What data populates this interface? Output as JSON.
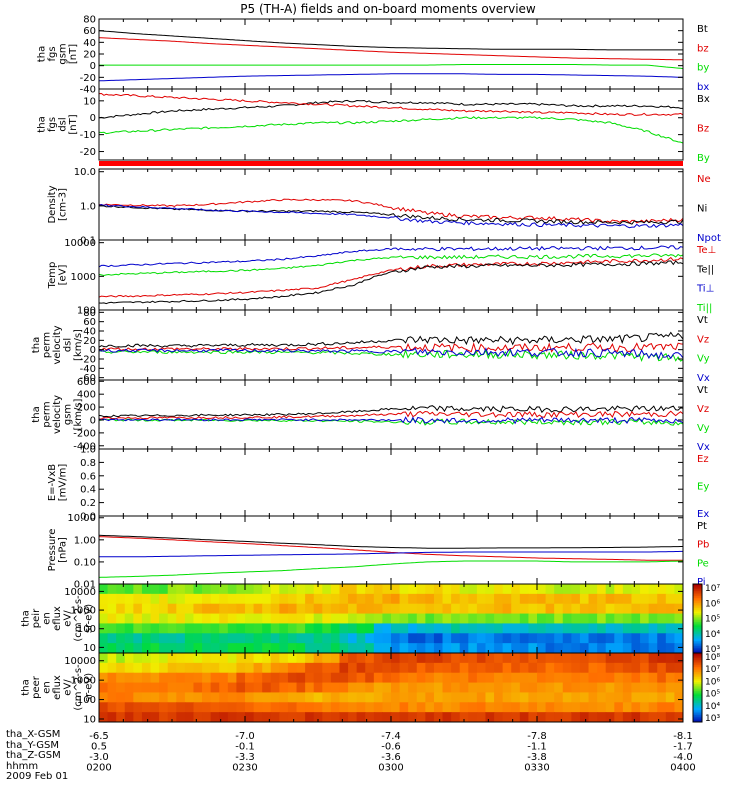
{
  "title": "P5 (TH-A) fields and on-board moments overview",
  "x_axis": {
    "tick_rows": [
      {
        "label": "tha_X-GSM",
        "values": [
          "-6.5",
          "-7.0",
          "-7.4",
          "-7.8",
          "-8.1"
        ]
      },
      {
        "label": "tha_Y-GSM",
        "values": [
          "0.5",
          "-0.1",
          "-0.6",
          "-1.1",
          "-1.7"
        ]
      },
      {
        "label": "tha_Z-GSM",
        "values": [
          "-3.0",
          "-3.3",
          "-3.6",
          "-3.8",
          "-4.0"
        ]
      },
      {
        "label": "hhmm",
        "values": [
          "0200",
          "0230",
          "0300",
          "0330",
          "0400"
        ]
      }
    ],
    "date": "2009 Feb 01"
  },
  "colors": {
    "black": "#000000",
    "red": "#e00000",
    "green": "#00dd00",
    "blue": "#0000cc"
  },
  "chart_data": [
    {
      "id": "fgs-gsm",
      "type": "line",
      "ylabel": [
        "tha",
        "fgs",
        "gsm",
        "[nT]"
      ],
      "yticks": [
        "80",
        "60",
        "40",
        "20",
        "0",
        "-20",
        "-40"
      ],
      "ylim": [
        -40,
        80
      ],
      "series": [
        {
          "name": "Bt",
          "color": "black",
          "values": [
            60,
            55,
            51,
            47,
            43,
            39,
            36,
            33,
            31,
            30,
            29,
            28,
            28,
            28,
            27,
            27,
            27
          ]
        },
        {
          "name": "bz",
          "color": "red",
          "values": [
            48,
            45,
            42,
            38,
            35,
            32,
            29,
            26,
            23,
            21,
            19,
            17,
            15,
            13,
            12,
            11,
            10
          ]
        },
        {
          "name": "by",
          "color": "green",
          "values": [
            1,
            1,
            1,
            1,
            1,
            1,
            1,
            1,
            1,
            1,
            2,
            2,
            2,
            2,
            1,
            1,
            -5
          ]
        },
        {
          "name": "bx",
          "color": "blue",
          "values": [
            -26,
            -24,
            -22,
            -20,
            -18,
            -17,
            -16,
            -15,
            -14,
            -14,
            -14,
            -15,
            -15,
            -16,
            -17,
            -18,
            -20
          ]
        }
      ]
    },
    {
      "id": "fgs-dsl",
      "type": "line",
      "ylabel": [
        "tha",
        "fgs",
        "dsl",
        "[nT]"
      ],
      "yticks": [
        "10",
        "0",
        "-10",
        "-20"
      ],
      "ylim": [
        -25,
        17
      ],
      "series": [
        {
          "name": "Bx",
          "color": "black",
          "values": [
            0,
            2,
            4,
            5,
            6,
            7,
            9,
            10,
            9,
            9,
            8,
            8,
            8,
            7,
            7,
            7,
            6
          ]
        },
        {
          "name": "Bz",
          "color": "red",
          "values": [
            14,
            13,
            12,
            11,
            10,
            9,
            8,
            7,
            6,
            5,
            4,
            4,
            3,
            3,
            2,
            2,
            2
          ]
        },
        {
          "name": "By",
          "color": "green",
          "values": [
            -9,
            -8,
            -7,
            -6,
            -5,
            -4,
            -3,
            -3,
            -2,
            -1,
            0,
            0,
            0,
            -1,
            -3,
            -8,
            -15
          ]
        }
      ]
    },
    {
      "id": "density",
      "type": "line",
      "scale": "log",
      "ylabel": [
        "Density",
        "[cm-3]"
      ],
      "yticks": [
        "10.0",
        "1.0",
        "0.1"
      ],
      "ylim": [
        0.1,
        12
      ],
      "series": [
        {
          "name": "Ne",
          "color": "red",
          "values": [
            1.1,
            1.05,
            1.0,
            1.1,
            1.3,
            1.5,
            1.5,
            1.4,
            0.9,
            0.6,
            0.5,
            0.45,
            0.45,
            0.4,
            0.35,
            0.35,
            0.4
          ]
        },
        {
          "name": "Ni",
          "color": "black",
          "values": [
            1.0,
            0.9,
            0.8,
            0.75,
            0.7,
            0.7,
            0.7,
            0.65,
            0.55,
            0.45,
            0.4,
            0.38,
            0.36,
            0.34,
            0.33,
            0.33,
            0.35
          ]
        },
        {
          "name": "Npot",
          "color": "blue",
          "values": [
            1.05,
            0.95,
            0.85,
            0.75,
            0.7,
            0.65,
            0.6,
            0.55,
            0.45,
            0.35,
            0.32,
            0.3,
            0.28,
            0.27,
            0.26,
            0.26,
            0.28
          ]
        }
      ]
    },
    {
      "id": "temperature",
      "type": "line",
      "scale": "log",
      "ylabel": [
        "Temp",
        "[eV]"
      ],
      "yticks": [
        "10000",
        "1000",
        "100"
      ],
      "ylim": [
        100,
        12000
      ],
      "series": [
        {
          "name": "Te⊥",
          "color": "red",
          "values": [
            250,
            260,
            280,
            300,
            330,
            380,
            450,
            800,
            1500,
            2000,
            2200,
            2300,
            2400,
            2600,
            2800,
            3000,
            3300
          ]
        },
        {
          "name": "Te||",
          "color": "black",
          "values": [
            160,
            170,
            180,
            190,
            210,
            250,
            330,
            550,
            1300,
            1900,
            2000,
            2100,
            2100,
            2200,
            2300,
            2400,
            2600
          ]
        },
        {
          "name": "Ti⊥",
          "color": "blue",
          "values": [
            2000,
            2200,
            2400,
            2600,
            2800,
            3200,
            4000,
            5500,
            6500,
            6500,
            6500,
            6600,
            6700,
            6800,
            6900,
            7000,
            7200
          ]
        },
        {
          "name": "Ti||",
          "color": "green",
          "values": [
            1100,
            1200,
            1300,
            1400,
            1500,
            1700,
            2100,
            3000,
            3600,
            3700,
            3700,
            3800,
            3800,
            3900,
            4000,
            4100,
            4200
          ]
        }
      ]
    },
    {
      "id": "perm-velocity-dsl",
      "type": "line",
      "ylabel": [
        "tha",
        "perm",
        "velocity",
        "dsl",
        "[km/s]"
      ],
      "yticks": [
        "80",
        "60",
        "40",
        "20",
        "0",
        "-20",
        "-40",
        "-60"
      ],
      "ylim": [
        -65,
        85
      ],
      "series": [
        {
          "name": "Vt",
          "color": "black",
          "values": [
            8,
            9,
            8,
            9,
            10,
            10,
            12,
            15,
            20,
            22,
            20,
            20,
            20,
            22,
            22,
            25,
            30
          ]
        },
        {
          "name": "Vz",
          "color": "red",
          "values": [
            2,
            1,
            2,
            1,
            2,
            2,
            3,
            4,
            6,
            5,
            4,
            4,
            4,
            5,
            5,
            5,
            6
          ]
        },
        {
          "name": "Vy",
          "color": "green",
          "values": [
            -5,
            -5,
            -5,
            -5,
            -5,
            -6,
            -6,
            -8,
            -10,
            -10,
            -10,
            -10,
            -11,
            -12,
            -12,
            -15,
            -20
          ]
        },
        {
          "name": "Vx",
          "color": "blue",
          "values": [
            -2,
            -2,
            -2,
            -2,
            -2,
            -2,
            -3,
            -3,
            -4,
            -5,
            -5,
            -5,
            -6,
            -6,
            -7,
            -10,
            -15
          ]
        }
      ]
    },
    {
      "id": "perm-velocity-gsm",
      "type": "line",
      "ylabel": [
        "tha",
        "perm",
        "velocity",
        "gsm",
        "[km/s]"
      ],
      "yticks": [
        "600",
        "400",
        "200",
        "0",
        "-200",
        "-400"
      ],
      "ylim": [
        -450,
        620
      ],
      "series": [
        {
          "name": "Vt",
          "color": "black",
          "values": [
            60,
            65,
            70,
            75,
            80,
            85,
            100,
            130,
            170,
            180,
            170,
            170,
            165,
            170,
            170,
            175,
            180
          ]
        },
        {
          "name": "Vz",
          "color": "red",
          "values": [
            30,
            32,
            35,
            38,
            40,
            45,
            55,
            70,
            90,
            95,
            90,
            88,
            85,
            88,
            88,
            90,
            95
          ]
        },
        {
          "name": "Vy",
          "color": "green",
          "values": [
            0,
            -2,
            -4,
            -5,
            -6,
            -8,
            -12,
            -20,
            -30,
            -35,
            -30,
            -30,
            -30,
            -30,
            -30,
            -35,
            -45
          ]
        },
        {
          "name": "Vx",
          "color": "blue",
          "values": [
            5,
            5,
            5,
            4,
            4,
            4,
            3,
            2,
            0,
            -5,
            -5,
            -5,
            -5,
            -5,
            -5,
            -5,
            -8
          ]
        }
      ]
    },
    {
      "id": "e-field",
      "type": "line",
      "ylabel": [
        "E=-VxB",
        "[mV/m]"
      ],
      "yticks": [
        "1.0",
        "0.8",
        "0.6",
        "0.4",
        "0.2",
        "0.0"
      ],
      "ylim": [
        0,
        1
      ],
      "series": [
        {
          "name": "Ez",
          "color": "red",
          "values": []
        },
        {
          "name": "Ey",
          "color": "green",
          "values": []
        },
        {
          "name": "Ex",
          "color": "blue",
          "values": []
        }
      ]
    },
    {
      "id": "pressure",
      "type": "line",
      "scale": "log",
      "ylabel": [
        "Pressure",
        "[nPa]"
      ],
      "yticks": [
        "10.00",
        "1.00",
        "0.10",
        "0.01"
      ],
      "ylim": [
        0.01,
        12
      ],
      "series": [
        {
          "name": "Pt",
          "color": "black",
          "values": [
            1.6,
            1.4,
            1.2,
            1.0,
            0.85,
            0.7,
            0.6,
            0.5,
            0.45,
            0.42,
            0.42,
            0.43,
            0.43,
            0.44,
            0.45,
            0.47,
            0.5
          ]
        },
        {
          "name": "Pb",
          "color": "red",
          "values": [
            1.4,
            1.2,
            1.0,
            0.82,
            0.68,
            0.55,
            0.44,
            0.35,
            0.27,
            0.22,
            0.19,
            0.17,
            0.15,
            0.14,
            0.13,
            0.12,
            0.12
          ]
        },
        {
          "name": "Pe",
          "color": "green",
          "values": [
            0.02,
            0.022,
            0.025,
            0.03,
            0.035,
            0.04,
            0.05,
            0.06,
            0.08,
            0.1,
            0.11,
            0.11,
            0.11,
            0.1,
            0.1,
            0.1,
            0.11
          ]
        },
        {
          "name": "Pi",
          "color": "blue",
          "values": [
            0.17,
            0.17,
            0.18,
            0.19,
            0.2,
            0.21,
            0.22,
            0.23,
            0.25,
            0.27,
            0.28,
            0.28,
            0.28,
            0.28,
            0.28,
            0.28,
            0.3
          ]
        }
      ]
    },
    {
      "id": "peir-spectrogram",
      "type": "heatmap",
      "ylabel": [
        "tha",
        "peir",
        "en",
        "eflux",
        "eV/",
        "(cm^2-s-",
        "sr-eV)"
      ],
      "yticks": [
        "10000",
        "1000",
        "100",
        "10"
      ],
      "ylim": [
        5,
        25000
      ],
      "colorbar": {
        "min_exp": 3,
        "max_exp": 7,
        "ticks": [
          "10⁷",
          "10⁶",
          "10⁵",
          "10⁴",
          "10³"
        ]
      },
      "rows_log10_flux": [
        [
          4.8,
          4.9,
          5.0,
          5.1,
          5.2,
          5.3,
          5.4,
          5.6,
          5.5,
          5.5,
          5.4,
          5.4,
          5.4,
          5.3,
          5.3,
          5.3,
          5.3
        ],
        [
          5.3,
          5.4,
          5.4,
          5.5,
          5.5,
          5.6,
          5.7,
          5.8,
          5.8,
          5.8,
          5.7,
          5.7,
          5.7,
          5.7,
          5.7,
          5.7,
          5.7
        ],
        [
          5.5,
          5.6,
          5.6,
          5.7,
          5.7,
          5.8,
          5.8,
          5.8,
          5.7,
          5.7,
          5.7,
          5.7,
          5.7,
          5.7,
          5.7,
          5.7,
          5.7
        ],
        [
          5.4,
          5.4,
          5.4,
          5.4,
          5.4,
          5.4,
          5.3,
          5.2,
          5.0,
          5.0,
          5.0,
          5.0,
          5.0,
          5.0,
          5.0,
          5.0,
          5.0
        ],
        [
          4.8,
          4.8,
          4.8,
          4.8,
          4.8,
          4.8,
          4.7,
          4.5,
          4.0,
          4.0,
          4.1,
          4.1,
          4.1,
          4.1,
          4.1,
          4.1,
          4.1
        ],
        [
          4.3,
          4.3,
          4.3,
          4.3,
          4.3,
          4.3,
          4.2,
          4.0,
          3.6,
          3.5,
          3.6,
          3.6,
          3.6,
          3.6,
          3.6,
          3.6,
          3.6
        ],
        [
          4.5,
          4.5,
          4.5,
          4.5,
          4.5,
          4.5,
          4.4,
          4.2,
          3.8,
          3.7,
          3.7,
          3.7,
          3.7,
          3.6,
          3.6,
          3.6,
          3.6
        ]
      ]
    },
    {
      "id": "peer-spectrogram",
      "type": "heatmap",
      "ylabel": [
        "tha",
        "peer",
        "en",
        "eflux",
        "eV/",
        "(cm^2-s-",
        "sr-eV)"
      ],
      "yticks": [
        "10000",
        "1000",
        "100",
        "10"
      ],
      "ylim": [
        7,
        25000
      ],
      "colorbar": {
        "min_exp": 3,
        "max_exp": 8,
        "ticks": [
          "10⁸",
          "10⁷",
          "10⁶",
          "10⁵",
          "10⁴",
          "10³"
        ]
      },
      "rows_log10_flux": [
        [
          5.8,
          5.9,
          6.0,
          6.0,
          6.1,
          6.2,
          6.5,
          7.2,
          7.5,
          7.4,
          7.3,
          7.3,
          7.3,
          7.3,
          7.3,
          7.4,
          7.5
        ],
        [
          6.2,
          6.2,
          6.3,
          6.3,
          6.5,
          6.8,
          7.2,
          7.4,
          7.3,
          7.2,
          7.1,
          7.1,
          7.1,
          7.1,
          7.1,
          7.2,
          7.3
        ],
        [
          6.8,
          6.8,
          6.8,
          6.9,
          7.1,
          7.3,
          7.3,
          7.2,
          7.0,
          6.9,
          6.9,
          6.9,
          6.9,
          6.9,
          6.9,
          6.9,
          7.0
        ],
        [
          7.0,
          7.0,
          7.0,
          7.1,
          7.2,
          7.1,
          7.0,
          6.8,
          6.7,
          6.7,
          6.7,
          6.7,
          6.7,
          6.7,
          6.7,
          6.7,
          6.8
        ],
        [
          6.8,
          6.8,
          6.8,
          6.8,
          6.7,
          6.6,
          6.5,
          6.5,
          6.6,
          6.6,
          6.6,
          6.6,
          6.6,
          6.6,
          6.6,
          6.6,
          6.6
        ],
        [
          7.3,
          7.3,
          7.3,
          7.2,
          7.1,
          7.0,
          6.9,
          6.8,
          6.8,
          6.8,
          6.8,
          6.8,
          6.8,
          6.8,
          6.8,
          6.8,
          6.9
        ],
        [
          7.5,
          7.5,
          7.5,
          7.5,
          7.5,
          7.5,
          7.5,
          7.5,
          7.5,
          7.5,
          7.5,
          7.5,
          7.5,
          7.5,
          7.5,
          7.5,
          7.5
        ]
      ]
    }
  ]
}
